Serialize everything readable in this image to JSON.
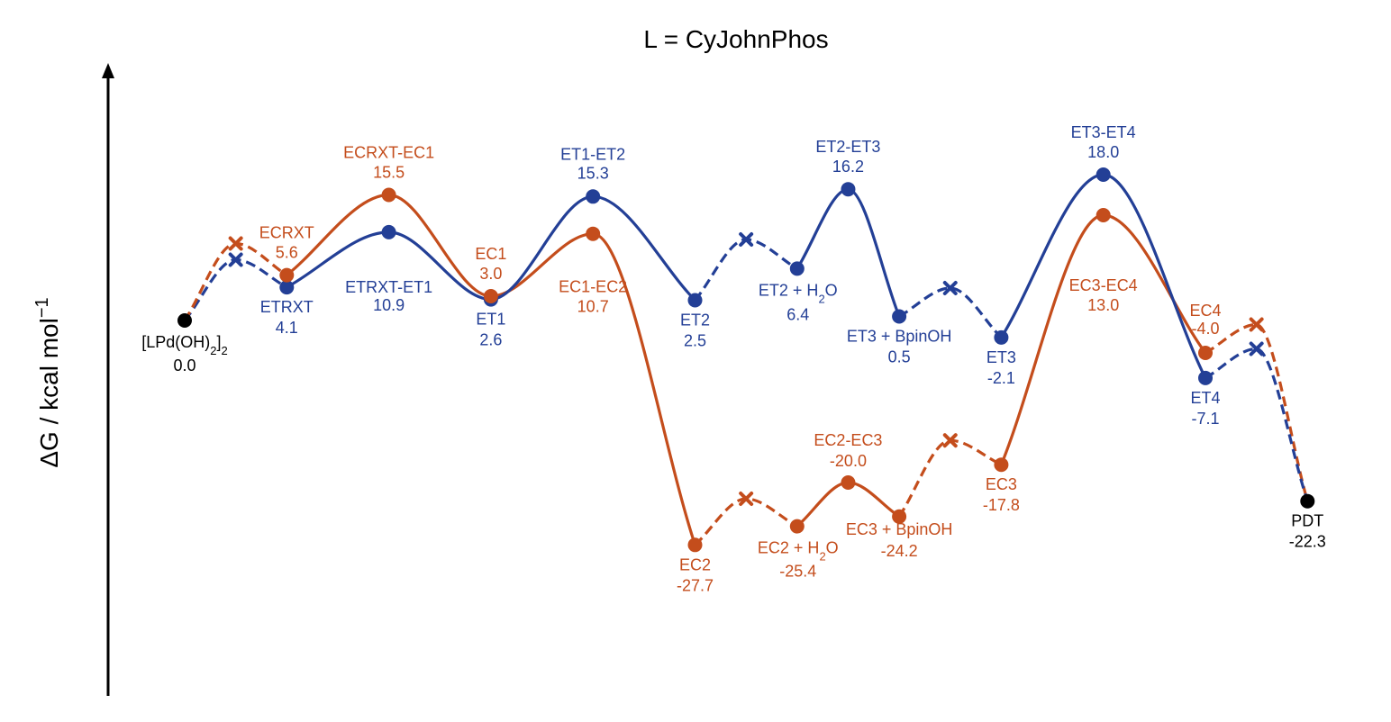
{
  "chart_data": {
    "type": "line",
    "title": "L = CyJohnPhos",
    "ylabel_main": "ΔG / kcal mol",
    "ylabel_sup": "−1",
    "colors": {
      "ET": "#233f96",
      "EC": "#c44d1c",
      "common": "#000000"
    },
    "points": [
      {
        "id": "start",
        "series": "common",
        "x": 0,
        "y": 0.0,
        "name_html": "[LPd(OH)<tspan baseline-shift=\"sub\" font-size=\"13\">2</tspan>]<tspan baseline-shift=\"sub\" font-size=\"13\">2</tspan>",
        "value": "0.0"
      },
      {
        "id": "ET_x1",
        "series": "ET",
        "x": 0.5,
        "y": 7.5,
        "marker": "x"
      },
      {
        "id": "EC_x1",
        "series": "EC",
        "x": 0.5,
        "y": 9.5,
        "marker": "x"
      },
      {
        "id": "ETRXT",
        "series": "ET",
        "x": 1,
        "y": 4.1,
        "name": "ETRXT",
        "value": "4.1"
      },
      {
        "id": "ECRXT",
        "series": "EC",
        "x": 1,
        "y": 5.6,
        "name": "ECRXT",
        "value": "5.6"
      },
      {
        "id": "ETRXT-ET1",
        "series": "ET",
        "x": 2,
        "y": 10.9,
        "name": "ETRXT-ET1",
        "value": "10.9"
      },
      {
        "id": "ECRXT-EC1",
        "series": "EC",
        "x": 2,
        "y": 15.5,
        "name": "ECRXT-EC1",
        "value": "15.5"
      },
      {
        "id": "ET1",
        "series": "ET",
        "x": 3,
        "y": 2.6,
        "name": "ET1",
        "value": "2.6"
      },
      {
        "id": "EC1",
        "series": "EC",
        "x": 3,
        "y": 3.0,
        "name": "EC1",
        "value": "3.0"
      },
      {
        "id": "ET1-ET2",
        "series": "ET",
        "x": 4,
        "y": 15.3,
        "name": "ET1-ET2",
        "value": "15.3"
      },
      {
        "id": "EC1-EC2",
        "series": "EC",
        "x": 4,
        "y": 10.7,
        "name": "EC1-EC2",
        "value": "10.7"
      },
      {
        "id": "ET2",
        "series": "ET",
        "x": 5,
        "y": 2.5,
        "name": "ET2",
        "value": "2.5"
      },
      {
        "id": "EC2",
        "series": "EC",
        "x": 5,
        "y": -27.7,
        "name": "EC2",
        "value": "-27.7"
      },
      {
        "id": "ET_x2",
        "series": "ET",
        "x": 5.5,
        "y": 10.0,
        "marker": "x"
      },
      {
        "id": "EC_x2",
        "series": "EC",
        "x": 5.5,
        "y": -22.0,
        "marker": "x"
      },
      {
        "id": "ET2+H2O",
        "series": "ET",
        "x": 6,
        "y": 6.4,
        "name_html": "ET2 + H<tspan baseline-shift=\"sub\" font-size=\"13\">2</tspan>O",
        "value": "6.4"
      },
      {
        "id": "EC2+H2O",
        "series": "EC",
        "x": 6,
        "y": -25.4,
        "name_html": "EC2 + H<tspan baseline-shift=\"sub\" font-size=\"13\">2</tspan>O",
        "value": "-25.4"
      },
      {
        "id": "ET2-ET3",
        "series": "ET",
        "x": 6.5,
        "y": 16.2,
        "name": "ET2-ET3",
        "value": "16.2"
      },
      {
        "id": "EC2-EC3",
        "series": "EC",
        "x": 6.5,
        "y": -20.0,
        "name": "EC2-EC3",
        "value": "-20.0"
      },
      {
        "id": "ET3+BpinOH",
        "series": "ET",
        "x": 7,
        "y": 0.5,
        "name": "ET3 + BpinOH",
        "value": "0.5"
      },
      {
        "id": "EC3+BpinOH",
        "series": "EC",
        "x": 7,
        "y": -24.2,
        "name": "EC3 + BpinOH",
        "value": "-24.2"
      },
      {
        "id": "ET_x3",
        "series": "ET",
        "x": 7.5,
        "y": 4.0,
        "marker": "x"
      },
      {
        "id": "EC_x3",
        "series": "EC",
        "x": 7.5,
        "y": -14.8,
        "marker": "x"
      },
      {
        "id": "ET3",
        "series": "ET",
        "x": 8,
        "y": -2.1,
        "name": "ET3",
        "value": "-2.1"
      },
      {
        "id": "EC3",
        "series": "EC",
        "x": 8,
        "y": -17.8,
        "name": "EC3",
        "value": "-17.8"
      },
      {
        "id": "ET3-ET4",
        "series": "ET",
        "x": 9,
        "y": 18.0,
        "name": "ET3-ET4",
        "value": "18.0"
      },
      {
        "id": "EC3-EC4",
        "series": "EC",
        "x": 9,
        "y": 13.0,
        "name": "EC3-EC4",
        "value": "13.0"
      },
      {
        "id": "ET4",
        "series": "ET",
        "x": 10,
        "y": -7.1,
        "name": "ET4",
        "value": "-7.1"
      },
      {
        "id": "EC4",
        "series": "EC",
        "x": 10,
        "y": -4.0,
        "name": "EC4",
        "value": "-4.0"
      },
      {
        "id": "ET_x4",
        "series": "ET",
        "x": 10.5,
        "y": -3.5,
        "marker": "x"
      },
      {
        "id": "EC_x4",
        "series": "EC",
        "x": 10.5,
        "y": -0.5,
        "marker": "x"
      },
      {
        "id": "PDT",
        "series": "common",
        "x": 11,
        "y": -22.3,
        "name": "PDT",
        "value": "-22.3"
      }
    ],
    "segments": [
      {
        "color": "ET",
        "style": "dashed",
        "path": [
          "start",
          "ET_x1",
          "ETRXT"
        ]
      },
      {
        "color": "EC",
        "style": "dashed",
        "path": [
          "start",
          "EC_x1",
          "ECRXT"
        ]
      },
      {
        "color": "EC",
        "style": "solid",
        "path": [
          "ECRXT",
          "ECRXT-EC1",
          "EC1",
          "EC1-EC2",
          "EC2"
        ]
      },
      {
        "color": "ET",
        "style": "solid",
        "path": [
          "ETRXT",
          "ETRXT-ET1",
          "ET1",
          "ET1-ET2",
          "ET2"
        ]
      },
      {
        "color": "ET",
        "style": "dashed",
        "path": [
          "ET2",
          "ET_x2",
          "ET2+H2O"
        ]
      },
      {
        "color": "EC",
        "style": "dashed",
        "path": [
          "EC2",
          "EC_x2",
          "EC2+H2O"
        ]
      },
      {
        "color": "ET",
        "style": "solid",
        "path": [
          "ET2+H2O",
          "ET2-ET3",
          "ET3+BpinOH"
        ]
      },
      {
        "color": "EC",
        "style": "solid",
        "path": [
          "EC2+H2O",
          "EC2-EC3",
          "EC3+BpinOH"
        ]
      },
      {
        "color": "ET",
        "style": "dashed",
        "path": [
          "ET3+BpinOH",
          "ET_x3",
          "ET3"
        ]
      },
      {
        "color": "EC",
        "style": "dashed",
        "path": [
          "EC3+BpinOH",
          "EC_x3",
          "EC3"
        ]
      },
      {
        "color": "EC",
        "style": "solid",
        "path": [
          "EC3",
          "EC3-EC4",
          "EC4"
        ]
      },
      {
        "color": "ET",
        "style": "solid",
        "path": [
          "ET3",
          "ET3-ET4",
          "ET4"
        ]
      },
      {
        "color": "EC",
        "style": "dashed",
        "path": [
          "EC4",
          "EC_x4",
          "PDT"
        ]
      },
      {
        "color": "ET",
        "style": "dashed",
        "path": [
          "ET4",
          "ET_x4",
          "PDT"
        ]
      }
    ]
  }
}
